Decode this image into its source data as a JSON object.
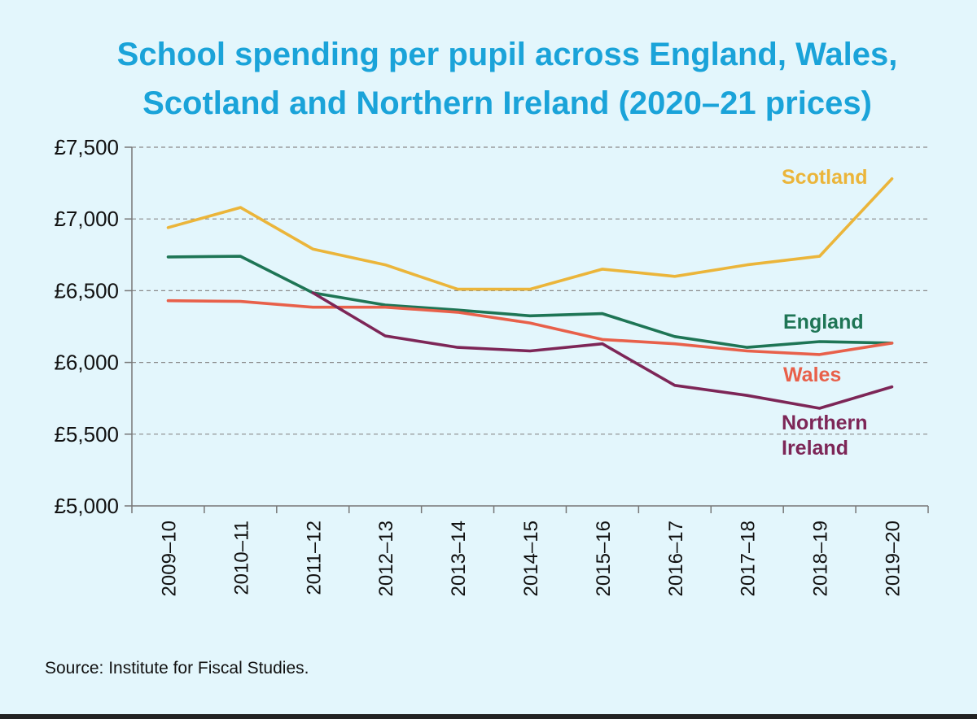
{
  "colors": {
    "background": "#e3f6fc",
    "title": "#1aa3d9",
    "England": "#1e7555",
    "Wales": "#e8604a",
    "Scotland": "#ebb53a",
    "Northern Ireland": "#7d2657"
  },
  "source": "Source: Institute for Fiscal Studies.",
  "chart_data": {
    "type": "line",
    "title_lines": [
      "School spending per pupil across England, Wales,",
      "Scotland and Northern Ireland (2020–21 prices)"
    ],
    "xlabel": "",
    "ylabel": "",
    "ylim": [
      5000,
      7500
    ],
    "yticks": [
      5000,
      5500,
      6000,
      6500,
      7000,
      7500
    ],
    "ytick_labels": [
      "£5,000",
      "£5,500",
      "£6,000",
      "£6,500",
      "£7,000",
      "£7,500"
    ],
    "grid": "horizontal dashed",
    "categories": [
      "2009–10",
      "2010–11",
      "2011–12",
      "2012–13",
      "2013–14",
      "2014–15",
      "2015–16",
      "2016–17",
      "2017–18",
      "2018–19",
      "2019–20"
    ],
    "series": [
      {
        "name": "Scotland",
        "label_lines": [
          "Scotland"
        ],
        "values": [
          6940,
          7080,
          6790,
          6680,
          6510,
          6510,
          6650,
          6600,
          6680,
          6740,
          7280
        ]
      },
      {
        "name": "England",
        "label_lines": [
          "England"
        ],
        "values": [
          6735,
          6740,
          6485,
          6400,
          6365,
          6325,
          6340,
          6180,
          6105,
          6145,
          6135
        ]
      },
      {
        "name": "Wales",
        "label_lines": [
          "Wales"
        ],
        "values": [
          6430,
          6425,
          6385,
          6385,
          6350,
          6275,
          6160,
          6130,
          6080,
          6055,
          6135
        ]
      },
      {
        "name": "Northern Ireland",
        "label_lines": [
          "Northern",
          "Ireland"
        ],
        "values": [
          null,
          null,
          6485,
          6185,
          6105,
          6080,
          6130,
          5840,
          5770,
          5680,
          5830
        ]
      }
    ]
  }
}
